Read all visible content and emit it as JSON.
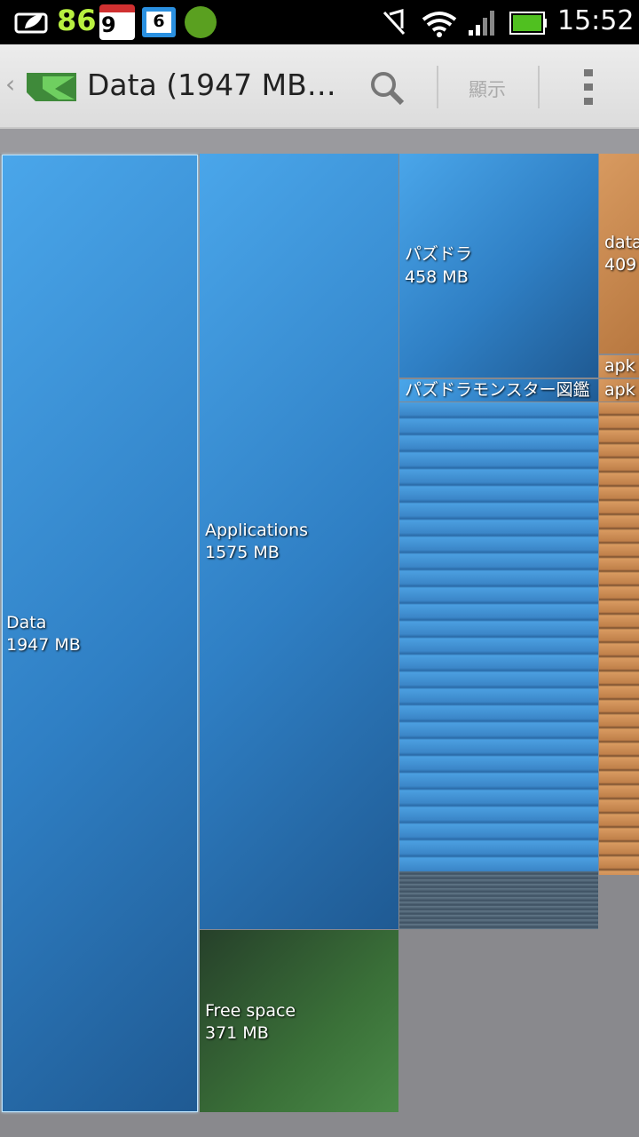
{
  "status_bar": {
    "counter": "86",
    "calendar_day": "9",
    "notification": "6",
    "time": "15:52"
  },
  "action_bar": {
    "title": "Data (1947 MB…",
    "action": "顯示"
  },
  "treemap": {
    "blocks": [
      {
        "name": "Data",
        "size": "1947 MB"
      },
      {
        "name": "Applications",
        "size": "1575 MB"
      },
      {
        "name": "Free space",
        "size": "371 MB"
      },
      {
        "name": "パズドラ",
        "size": "458 MB"
      },
      {
        "name": "パズドラモンスター図鑑"
      },
      {
        "name": "data",
        "size": "409"
      },
      {
        "name": "apk"
      },
      {
        "name": "apk"
      }
    ]
  }
}
